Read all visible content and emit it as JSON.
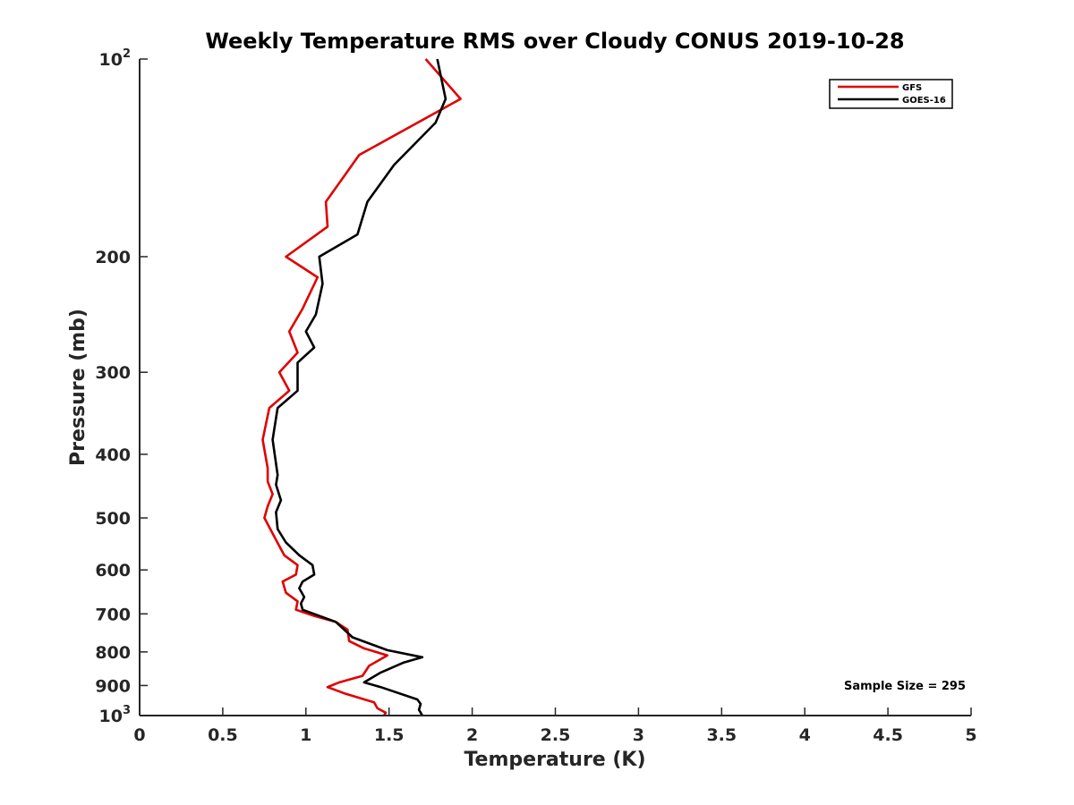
{
  "chart_data": {
    "type": "line",
    "title": "Weekly Temperature RMS over Cloudy CONUS 2019-10-28",
    "xlabel": "Temperature (K)",
    "ylabel": "Pressure (mb)",
    "xlim": [
      0,
      5
    ],
    "ylim": [
      100,
      1000
    ],
    "y_scale": "log",
    "y_reversed": true,
    "grid": false,
    "legend_position": "top-right",
    "x_ticks": [
      "0",
      "0.5",
      "1",
      "1.5",
      "2",
      "2.5",
      "3",
      "3.5",
      "4",
      "4.5",
      "5"
    ],
    "x_tick_values": [
      0,
      0.5,
      1,
      1.5,
      2,
      2.5,
      3,
      3.5,
      4,
      4.5,
      5
    ],
    "y_ticks": [
      {
        "value": 100,
        "base": "10",
        "exp": "2"
      },
      {
        "value": 200,
        "label": "200"
      },
      {
        "value": 300,
        "label": "300"
      },
      {
        "value": 400,
        "label": "400"
      },
      {
        "value": 500,
        "label": "500"
      },
      {
        "value": 600,
        "label": "600"
      },
      {
        "value": 700,
        "label": "700"
      },
      {
        "value": 800,
        "label": "800"
      },
      {
        "value": 900,
        "label": "900"
      },
      {
        "value": 1000,
        "base": "10",
        "exp": "3"
      }
    ],
    "annotation": "Sample Size = 295",
    "series": [
      {
        "name": "GFS",
        "color": "#e00000",
        "points": [
          [
            1.72,
            100
          ],
          [
            1.93,
            115
          ],
          [
            1.32,
            140
          ],
          [
            1.12,
            165
          ],
          [
            1.13,
            180
          ],
          [
            0.88,
            200
          ],
          [
            1.07,
            215
          ],
          [
            0.98,
            240
          ],
          [
            0.9,
            260
          ],
          [
            0.95,
            280
          ],
          [
            0.84,
            300
          ],
          [
            0.9,
            320
          ],
          [
            0.78,
            340
          ],
          [
            0.74,
            380
          ],
          [
            0.77,
            420
          ],
          [
            0.77,
            440
          ],
          [
            0.8,
            460
          ],
          [
            0.77,
            480
          ],
          [
            0.75,
            500
          ],
          [
            0.82,
            540
          ],
          [
            0.87,
            570
          ],
          [
            0.95,
            590
          ],
          [
            0.94,
            610
          ],
          [
            0.86,
            625
          ],
          [
            0.88,
            650
          ],
          [
            0.95,
            670
          ],
          [
            0.94,
            690
          ],
          [
            1.05,
            705
          ],
          [
            1.18,
            720
          ],
          [
            1.25,
            740
          ],
          [
            1.26,
            770
          ],
          [
            1.35,
            790
          ],
          [
            1.49,
            810
          ],
          [
            1.38,
            840
          ],
          [
            1.34,
            870
          ],
          [
            1.2,
            890
          ],
          [
            1.13,
            905
          ],
          [
            1.23,
            925
          ],
          [
            1.41,
            955
          ],
          [
            1.43,
            975
          ],
          [
            1.48,
            990
          ],
          [
            1.47,
            1000
          ]
        ]
      },
      {
        "name": "GOES-16",
        "color": "#000000",
        "points": [
          [
            1.79,
            100
          ],
          [
            1.84,
            115
          ],
          [
            1.78,
            125
          ],
          [
            1.53,
            145
          ],
          [
            1.37,
            165
          ],
          [
            1.31,
            185
          ],
          [
            1.08,
            200
          ],
          [
            1.1,
            220
          ],
          [
            1.06,
            245
          ],
          [
            1.0,
            260
          ],
          [
            1.05,
            275
          ],
          [
            0.95,
            290
          ],
          [
            0.95,
            320
          ],
          [
            0.83,
            340
          ],
          [
            0.8,
            380
          ],
          [
            0.83,
            430
          ],
          [
            0.82,
            445
          ],
          [
            0.85,
            470
          ],
          [
            0.82,
            490
          ],
          [
            0.83,
            520
          ],
          [
            0.88,
            545
          ],
          [
            0.96,
            570
          ],
          [
            1.04,
            590
          ],
          [
            1.05,
            610
          ],
          [
            0.98,
            625
          ],
          [
            0.96,
            640
          ],
          [
            0.99,
            660
          ],
          [
            0.97,
            675
          ],
          [
            0.98,
            690
          ],
          [
            1.18,
            720
          ],
          [
            1.28,
            760
          ],
          [
            1.49,
            795
          ],
          [
            1.7,
            815
          ],
          [
            1.59,
            830
          ],
          [
            1.45,
            860
          ],
          [
            1.35,
            890
          ],
          [
            1.45,
            905
          ],
          [
            1.67,
            945
          ],
          [
            1.69,
            960
          ],
          [
            1.68,
            980
          ],
          [
            1.7,
            1000
          ]
        ]
      }
    ]
  }
}
